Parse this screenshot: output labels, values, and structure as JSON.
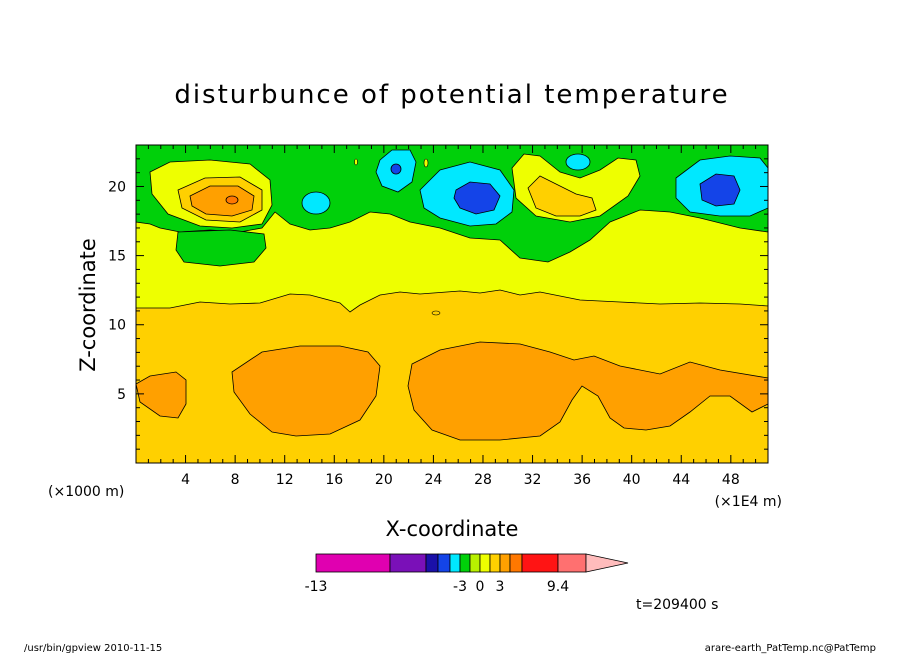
{
  "chart_data": {
    "type": "heatmap",
    "title": "disturbunce of potential temperature",
    "xlabel": "X-coordinate",
    "ylabel": "Z-coordinate",
    "x_unit_left": "(×1000 m)",
    "x_unit_right": "(×1E4 m)",
    "x_ticks": [
      "4",
      "8",
      "12",
      "16",
      "20",
      "24",
      "28",
      "32",
      "36",
      "40",
      "44",
      "48"
    ],
    "y_ticks": [
      "5",
      "10",
      "15",
      "20"
    ],
    "xlim": [
      0,
      51
    ],
    "ylim": [
      0,
      23
    ],
    "levels": {
      "colors": [
        "#e000b0",
        "#7a10b8",
        "#1a10a8",
        "#1444e8",
        "#00e8ff",
        "#00d00a",
        "#b8f000",
        "#eeff00",
        "#ffd000",
        "#ffa000",
        "#ff7800",
        "#ff1414",
        "#ff7070",
        "#ffbcbc"
      ],
      "labels": [
        "-13",
        "-3",
        "0",
        "3",
        "9.4"
      ]
    },
    "annotations": {
      "time": "t=209400 s",
      "footer_left": "/usr/bin/gpview   2010-11-15",
      "footer_right": "arare-earth_PatTemp.nc@PatTemp"
    }
  }
}
